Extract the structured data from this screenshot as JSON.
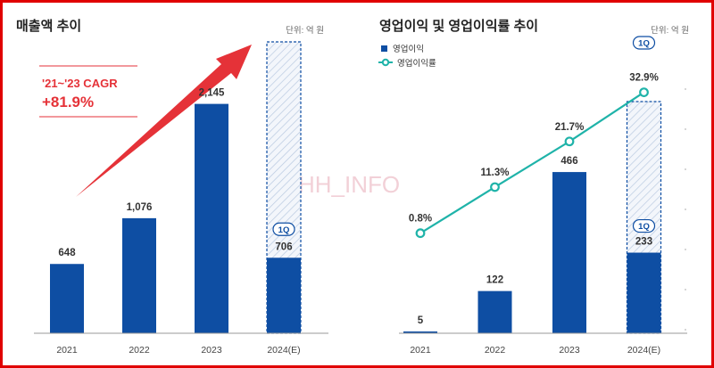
{
  "watermark": "HH_INFO",
  "colors": {
    "bar": "#0e4ea3",
    "line": "#1fb3a9",
    "accent": "#e53238",
    "frame": "#e00000"
  },
  "chart_data": [
    {
      "type": "bar",
      "title": "매출액 추이",
      "unit_label": "단위: 억 원",
      "categories": [
        "2021",
        "2022",
        "2023",
        "2024(E)"
      ],
      "values": [
        648,
        1076,
        2145,
        706
      ],
      "value_labels": [
        "648",
        "1,076",
        "2,145",
        "706"
      ],
      "estimate_badge": "1Q",
      "cagr_label": "'21~'23 CAGR",
      "cagr_value": "+81.9%",
      "ylim": [
        0,
        2750
      ]
    },
    {
      "type": "bar+line",
      "title": "영업이익 및 영업이익률 추이",
      "unit_label": "단위: 억 원",
      "categories": [
        "2021",
        "2022",
        "2023",
        "2024(E)"
      ],
      "series": [
        {
          "name": "영업이익",
          "type": "bar",
          "values": [
            5,
            122,
            466,
            233
          ],
          "value_labels": [
            "5",
            "122",
            "466",
            "233"
          ]
        },
        {
          "name": "영업이익률",
          "type": "line",
          "values": [
            0.8,
            11.3,
            21.7,
            32.9
          ],
          "value_labels": [
            "0.8%",
            "11.3%",
            "21.7%",
            "32.9%"
          ]
        }
      ],
      "estimate_badges": [
        "1Q",
        "1Q"
      ],
      "ylim_bar": [
        0,
        850
      ],
      "ylim_line": [
        -22,
        45
      ]
    }
  ]
}
